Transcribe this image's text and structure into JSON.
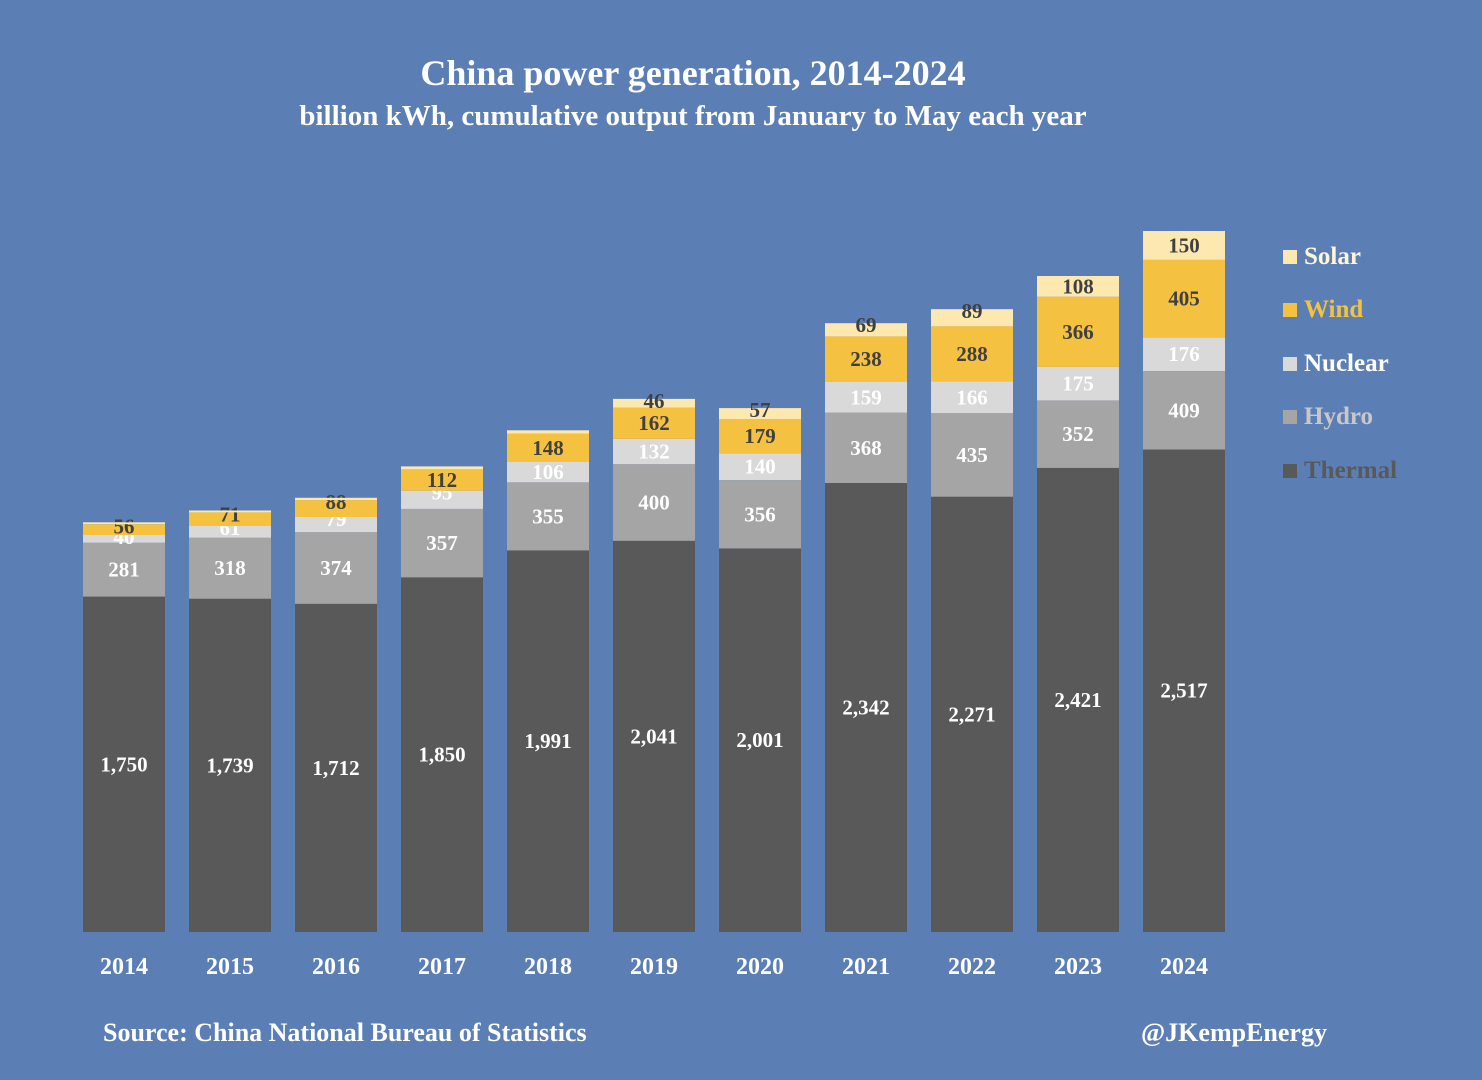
{
  "title": "China power generation, 2014-2024",
  "subtitle": "billion kWh, cumulative output from January to May each year",
  "source": "Source: China National Bureau of Statistics",
  "handle": "@JKempEnergy",
  "colors": {
    "background": "#5b7fb5",
    "Thermal": "#595959",
    "Hydro": "#a5a5a5",
    "Nuclear": "#d9d9d9",
    "Wind": "#f4c140",
    "Solar": "#fde9b0"
  },
  "chart_data": {
    "type": "bar",
    "stacked": true,
    "categories": [
      "2014",
      "2015",
      "2016",
      "2017",
      "2018",
      "2019",
      "2020",
      "2021",
      "2022",
      "2023",
      "2024"
    ],
    "series": [
      {
        "name": "Thermal",
        "values": [
          1750,
          1739,
          1712,
          1850,
          1991,
          2041,
          2001,
          2342,
          2271,
          2421,
          2517
        ],
        "labels": [
          "1,750",
          "1,739",
          "1,712",
          "1,850",
          "1,991",
          "2,041",
          "2,001",
          "2,342",
          "2,271",
          "2,421",
          "2,517"
        ]
      },
      {
        "name": "Hydro",
        "values": [
          281,
          318,
          374,
          357,
          355,
          400,
          356,
          368,
          435,
          352,
          409
        ],
        "labels": [
          "281",
          "318",
          "374",
          "357",
          "355",
          "400",
          "356",
          "368",
          "435",
          "352",
          "409"
        ]
      },
      {
        "name": "Nuclear",
        "values": [
          40,
          61,
          79,
          95,
          106,
          132,
          140,
          159,
          166,
          175,
          176
        ],
        "labels": [
          "40",
          "61",
          "79",
          "95",
          "106",
          "132",
          "140",
          "159",
          "166",
          "175",
          "176"
        ]
      },
      {
        "name": "Wind",
        "values": [
          56,
          71,
          88,
          112,
          148,
          162,
          179,
          238,
          288,
          366,
          405
        ],
        "labels": [
          "56",
          "71",
          "88",
          "112",
          "148",
          "162",
          "179",
          "238",
          "288",
          "366",
          "405"
        ]
      },
      {
        "name": "Solar",
        "values": [
          10,
          10,
          12,
          15,
          17,
          46,
          57,
          69,
          89,
          108,
          150
        ],
        "labels": [
          "",
          "",
          "",
          "",
          "",
          "46",
          "57",
          "69",
          "89",
          "108",
          "150"
        ]
      }
    ],
    "legend": [
      "Solar",
      "Wind",
      "Nuclear",
      "Hydro",
      "Thermal"
    ],
    "legend_position": "right",
    "ylim": [
      0,
      3700
    ],
    "grid": false,
    "xlabel": "",
    "ylabel": ""
  }
}
